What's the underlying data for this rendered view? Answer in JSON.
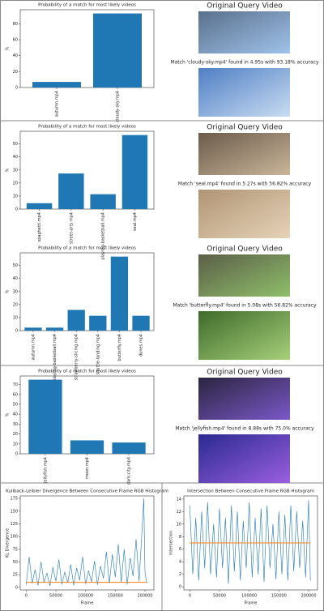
{
  "panels": [
    {
      "query_title": "Original Query Video",
      "match_text": "Match 'cloudy-sky.mp4' found in 4.95s with 93.18% accuracy"
    },
    {
      "query_title": "Original Query Video",
      "match_text": "Match 'seal.mp4' found in 5.27s with 56.82% accuracy"
    },
    {
      "query_title": "Original Query Video",
      "match_text": "Match 'butterfly.mp4' found in 5.08s with 56.82% accuracy"
    },
    {
      "query_title": "Original Query Video",
      "match_text": "Match 'jellyfish.mp4' found in 8.88s with 75.0% accuracy"
    }
  ],
  "chart_data": [
    {
      "type": "bar",
      "title": "Probability of a match for most likely videos",
      "ylabel": "%",
      "color": "#1f77b4",
      "categories": [
        "autumn.mp4",
        "cloudy-sky.mp4"
      ],
      "values": [
        7,
        93
      ],
      "ylim": [
        0,
        97.7
      ],
      "yticks": [
        0,
        20,
        40,
        60,
        80
      ]
    },
    {
      "type": "bar",
      "title": "Probability of a match for most likely videos",
      "ylabel": "%",
      "color": "#1f77b4",
      "categories": [
        "spaghetti.mp4",
        "street-arts.mp4",
        "playing-basketball.mp4",
        "seal.mp4"
      ],
      "values": [
        4.5,
        27.3,
        11.4,
        56.8
      ],
      "ylim": [
        0,
        59.7
      ],
      "yticks": [
        0,
        10,
        20,
        30,
        40,
        50
      ]
    },
    {
      "type": "bar",
      "title": "Probability of a match for most likely videos",
      "ylabel": "%",
      "color": "#1f77b4",
      "categories": [
        "autumn.mp4",
        "playing-basketball.mp4",
        "strawberry-slicing.mp4",
        "shuttle-landing.mp4",
        "butterfly.mp4",
        "dunes.mp4"
      ],
      "values": [
        2.3,
        2.3,
        15.9,
        11.4,
        56.8,
        11.4
      ],
      "ylim": [
        0,
        59.7
      ],
      "yticks": [
        0,
        10,
        20,
        30,
        40,
        50
      ]
    },
    {
      "type": "bar",
      "title": "Probability of a match for most likely videos",
      "ylabel": "%",
      "color": "#1f77b4",
      "categories": [
        "jellyfish.mp4",
        "moon.mp4",
        "dark-city.mp4"
      ],
      "values": [
        75,
        13.6,
        11.4
      ],
      "ylim": [
        0,
        78.75
      ],
      "yticks": [
        0,
        10,
        20,
        30,
        40,
        50,
        60,
        70
      ]
    },
    {
      "type": "line",
      "title": "Kullback-Leibler Divergence Between Consecutive Frame RGB Histogram",
      "xlabel": "Frame",
      "ylabel": "KL Divergence",
      "xlim": [
        -10000,
        215000
      ],
      "ylim": [
        -5,
        180
      ],
      "xticks": [
        0,
        50000,
        100000,
        150000,
        200000
      ],
      "yticks": [
        0,
        25,
        50,
        75,
        100,
        125,
        150,
        175
      ],
      "series": [
        {
          "name": "KL divergence",
          "color": "#1f77b4",
          "x": [
            0,
            5000,
            10000,
            15000,
            20000,
            25000,
            30000,
            35000,
            40000,
            45000,
            50000,
            55000,
            60000,
            65000,
            70000,
            75000,
            80000,
            85000,
            90000,
            95000,
            100000,
            105000,
            110000,
            115000,
            120000,
            125000,
            130000,
            135000,
            140000,
            145000,
            150000,
            155000,
            160000,
            165000,
            170000,
            175000,
            180000,
            185000,
            190000,
            195000,
            198000,
            200000,
            203000
          ],
          "values": [
            5,
            60,
            8,
            35,
            4,
            50,
            10,
            28,
            3,
            40,
            12,
            55,
            6,
            30,
            9,
            45,
            4,
            38,
            14,
            60,
            7,
            33,
            11,
            52,
            5,
            42,
            18,
            70,
            8,
            65,
            20,
            85,
            10,
            75,
            6,
            58,
            22,
            95,
            12,
            110,
            175,
            30,
            8
          ]
        },
        {
          "name": "Mean",
          "color": "#ff7f0e",
          "x": [
            0,
            203000
          ],
          "values": [
            10,
            10
          ]
        }
      ]
    },
    {
      "type": "line",
      "title": "Intersection Between Consecutive Frame RGB Histogram",
      "xlabel": "Frame",
      "ylabel": "Intersection",
      "xlim": [
        -10000,
        215000
      ],
      "ylim": [
        -0.5,
        14.5
      ],
      "xticks": [
        0,
        50000,
        100000,
        150000,
        200000
      ],
      "yticks": [
        0,
        2,
        4,
        6,
        8,
        10,
        12,
        14
      ],
      "series": [
        {
          "name": "Intersection",
          "color": "#1f77b4",
          "x": [
            0,
            5000,
            10000,
            15000,
            20000,
            25000,
            30000,
            35000,
            40000,
            45000,
            50000,
            55000,
            60000,
            65000,
            70000,
            75000,
            80000,
            85000,
            90000,
            95000,
            100000,
            105000,
            110000,
            115000,
            120000,
            125000,
            130000,
            135000,
            140000,
            145000,
            150000,
            155000,
            160000,
            165000,
            170000,
            175000,
            180000,
            185000,
            190000,
            195000,
            200000,
            203000
          ],
          "values": [
            13,
            2,
            11,
            1,
            12,
            3,
            13.5,
            2,
            10,
            1.5,
            12.5,
            3,
            11,
            0.5,
            13,
            2.5,
            12,
            1,
            10.5,
            3,
            13.5,
            1.5,
            11,
            2,
            12.5,
            0.8,
            13,
            3,
            10,
            1.2,
            12,
            2,
            11.5,
            1,
            13,
            2.5,
            12,
            3,
            10.5,
            1.5,
            13.8,
            1
          ]
        },
        {
          "name": "Mean",
          "color": "#ff7f0e",
          "x": [
            0,
            203000
          ],
          "values": [
            7,
            7
          ]
        }
      ]
    }
  ]
}
